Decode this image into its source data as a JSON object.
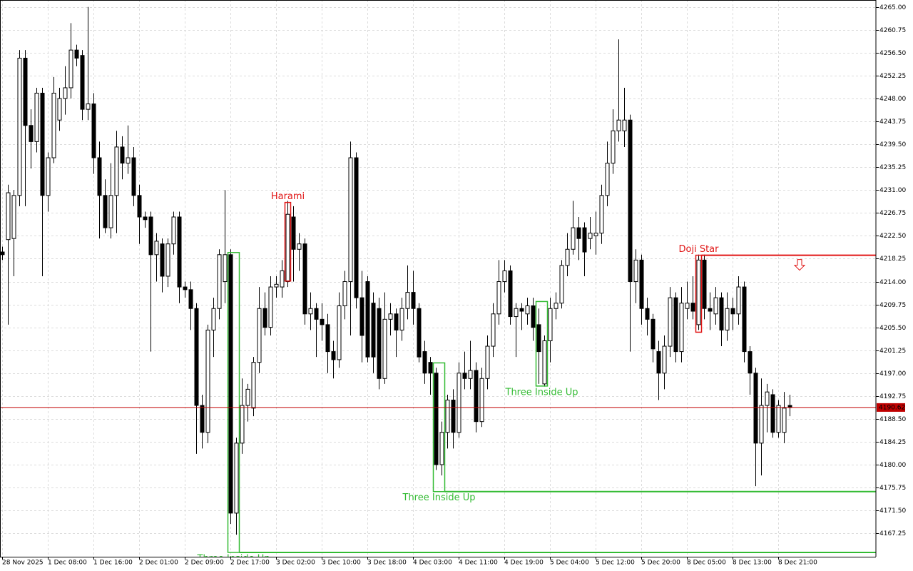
{
  "chart_data": {
    "type": "candlestick",
    "categories": [
      "28 Nov 2025",
      null,
      null,
      null,
      null,
      null,
      null,
      null,
      "1 Dec 08:00",
      null,
      null,
      null,
      null,
      null,
      null,
      null,
      "1 Dec 16:00",
      null,
      null,
      null,
      null,
      null,
      null,
      null,
      "2 Dec 01:00",
      null,
      null,
      null,
      null,
      null,
      null,
      null,
      "2 Dec 09:00",
      null,
      null,
      null,
      null,
      null,
      null,
      null,
      "2 Dec 17:00",
      null,
      null,
      null,
      null,
      null,
      null,
      null,
      "3 Dec 02:00",
      null,
      null,
      null,
      null,
      null,
      null,
      null,
      "3 Dec 10:00",
      null,
      null,
      null,
      null,
      null,
      null,
      null,
      "3 Dec 18:00",
      null,
      null,
      null,
      null,
      null,
      null,
      null,
      "4 Dec 03:00",
      null,
      null,
      null,
      null,
      null,
      null,
      null,
      "4 Dec 11:00",
      null,
      null,
      null,
      null,
      null,
      null,
      null,
      "4 Dec 19:00",
      null,
      null,
      null,
      null,
      null,
      null,
      null,
      "5 Dec 04:00",
      null,
      null,
      null,
      null,
      null,
      null,
      null,
      "5 Dec 12:00",
      null,
      null,
      null,
      null,
      null,
      null,
      null,
      "5 Dec 20:00",
      null,
      null,
      null,
      null,
      null,
      null,
      null,
      "8 Dec 05:00",
      null,
      null,
      null,
      null,
      null,
      null,
      null,
      "8 Dec 13:00",
      null,
      null,
      null,
      null,
      null,
      null,
      null,
      "8 Dec 21:00",
      null,
      null
    ],
    "ohlc": [
      [
        4219.5,
        4220.5,
        4218,
        4219
      ],
      [
        4221.8,
        4232,
        4206,
        4230.5
      ],
      [
        4222,
        4231,
        4215,
        4230
      ],
      [
        4230,
        4257,
        4228,
        4255.5
      ],
      [
        4255.5,
        4257,
        4228,
        4243
      ],
      [
        4243,
        4246,
        4235,
        4240
      ],
      [
        4240,
        4250,
        4238,
        4249
      ],
      [
        4249,
        4250,
        4215,
        4230
      ],
      [
        4230,
        4238,
        4227,
        4237
      ],
      [
        4237,
        4252,
        4236,
        4249
      ],
      [
        4244,
        4250,
        4242,
        4248
      ],
      [
        4248,
        4254,
        4245,
        4250
      ],
      [
        4250,
        4262,
        4248,
        4257
      ],
      [
        4257,
        4258,
        4254,
        4255.5
      ],
      [
        4256,
        4257,
        4244,
        4246
      ],
      [
        4246,
        4265,
        4244,
        4247
      ],
      [
        4247,
        4249,
        4234,
        4237
      ],
      [
        4237,
        4240,
        4222,
        4230
      ],
      [
        4230,
        4233,
        4223,
        4224
      ],
      [
        4224,
        4236,
        4222,
        4230
      ],
      [
        4230,
        4242,
        4223,
        4239
      ],
      [
        4239,
        4241,
        4233,
        4236
      ],
      [
        4236,
        4243,
        4234,
        4237
      ],
      [
        4237,
        4239,
        4228,
        4230
      ],
      [
        4230,
        4232,
        4221,
        4226
      ],
      [
        4226,
        4227,
        4224,
        4225.5
      ],
      [
        4226,
        4227,
        4201,
        4219
      ],
      [
        4219,
        4223,
        4214,
        4221.5
      ],
      [
        4221,
        4222,
        4212,
        4215
      ],
      [
        4215,
        4222,
        4213,
        4221
      ],
      [
        4221,
        4227,
        4219,
        4226
      ],
      [
        4226,
        4227,
        4210,
        4213
      ],
      [
        4213,
        4214,
        4211,
        4212.5
      ],
      [
        4212.5,
        4214,
        4205,
        4209
      ],
      [
        4209,
        4210,
        4182,
        4191
      ],
      [
        4191,
        4193,
        4183,
        4186
      ],
      [
        4186,
        4206,
        4184,
        4205
      ],
      [
        4205,
        4211,
        4200,
        4209
      ],
      [
        4209,
        4220,
        4207,
        4219
      ],
      [
        4214,
        4231,
        4210,
        4219
      ],
      [
        4219,
        4220,
        4169,
        4171
      ],
      [
        4171,
        4185,
        4167,
        4184
      ],
      [
        4184,
        4196,
        4182,
        4191
      ],
      [
        4191,
        4195,
        4188,
        4194
      ],
      [
        4190.5,
        4200,
        4189,
        4199
      ],
      [
        4199,
        4213,
        4197,
        4209
      ],
      [
        4209,
        4212,
        4204,
        4205.5
      ],
      [
        4205.5,
        4215,
        4204,
        4213
      ],
      [
        4213,
        4215,
        4211,
        4213.5
      ],
      [
        4213,
        4218,
        4211,
        4216
      ],
      [
        4214,
        4229,
        4213,
        4226.5
      ],
      [
        4226,
        4228,
        4214,
        4220
      ],
      [
        4220,
        4223,
        4216,
        4221
      ],
      [
        4221,
        4222,
        4206,
        4208
      ],
      [
        4208,
        4212,
        4205,
        4209
      ],
      [
        4209,
        4210,
        4200,
        4207
      ],
      [
        4207,
        4210,
        4203,
        4206
      ],
      [
        4206,
        4208,
        4197,
        4201
      ],
      [
        4201,
        4203,
        4196,
        4199.5
      ],
      [
        4199.5,
        4212,
        4198,
        4209.5
      ],
      [
        4209.5,
        4216,
        4207,
        4214
      ],
      [
        4214,
        4240,
        4204,
        4237
      ],
      [
        4237,
        4238,
        4209,
        4211
      ],
      [
        4211,
        4216,
        4199,
        4204
      ],
      [
        4214,
        4215,
        4199,
        4200
      ],
      [
        4210,
        4212,
        4197,
        4200
      ],
      [
        4209,
        4211,
        4194,
        4196
      ],
      [
        4196,
        4212,
        4195,
        4207
      ],
      [
        4207,
        4210,
        4204,
        4208
      ],
      [
        4208,
        4209,
        4200,
        4205
      ],
      [
        4205,
        4211,
        4203,
        4209
      ],
      [
        4209,
        4217,
        4207,
        4212
      ],
      [
        4212,
        4216,
        4206,
        4209
      ],
      [
        4209,
        4210,
        4199,
        4200
      ],
      [
        4201,
        4203,
        4195,
        4197
      ],
      [
        4199,
        4200,
        4193,
        4197
      ],
      [
        4197,
        4198,
        4179,
        4180
      ],
      [
        4180,
        4188,
        4178,
        4186
      ],
      [
        4186,
        4193,
        4183,
        4192
      ],
      [
        4192,
        4194,
        4183,
        4186
      ],
      [
        4186,
        4199,
        4185,
        4197
      ],
      [
        4197,
        4201,
        4194,
        4196
      ],
      [
        4196,
        4203,
        4194,
        4197.5
      ],
      [
        4197.5,
        4199,
        4186,
        4188
      ],
      [
        4188,
        4198,
        4187,
        4196
      ],
      [
        4196,
        4204,
        4194,
        4202
      ],
      [
        4202,
        4210,
        4200,
        4208
      ],
      [
        4208,
        4218,
        4206,
        4214
      ],
      [
        4214,
        4218,
        4212,
        4216
      ],
      [
        4216,
        4217,
        4206,
        4207.5
      ],
      [
        4207.5,
        4210,
        4200,
        4209
      ],
      [
        4209,
        4210,
        4205,
        4208.5
      ],
      [
        4208,
        4211,
        4206,
        4209.5
      ],
      [
        4209.5,
        4211,
        4203,
        4205.5
      ],
      [
        4206,
        4209,
        4195,
        4201
      ],
      [
        4195,
        4204,
        4194.5,
        4203
      ],
      [
        4203,
        4211,
        4199,
        4209
      ],
      [
        4209,
        4212,
        4207,
        4210
      ],
      [
        4210,
        4218,
        4209,
        4217
      ],
      [
        4217,
        4223,
        4215,
        4220
      ],
      [
        4220,
        4229,
        4219,
        4224
      ],
      [
        4224,
        4226,
        4218,
        4222
      ],
      [
        4224,
        4225,
        4215,
        4219.5
      ],
      [
        4222,
        4226,
        4220,
        4223
      ],
      [
        4222.5,
        4227,
        4219,
        4223
      ],
      [
        4223,
        4232,
        4221,
        4230
      ],
      [
        4230,
        4240,
        4228,
        4236
      ],
      [
        4236,
        4246,
        4234,
        4242
      ],
      [
        4242,
        4259,
        4240,
        4244
      ],
      [
        4242,
        4250,
        4239,
        4244
      ],
      [
        4244,
        4245,
        4201,
        4214
      ],
      [
        4214,
        4220,
        4210,
        4218
      ],
      [
        4218,
        4219,
        4206,
        4209
      ],
      [
        4209,
        4211,
        4204,
        4207
      ],
      [
        4207,
        4208,
        4199,
        4201.5
      ],
      [
        4201,
        4203,
        4192,
        4197
      ],
      [
        4197,
        4204,
        4194,
        4202
      ],
      [
        4202,
        4213,
        4200,
        4211
      ],
      [
        4211,
        4212,
        4199,
        4201
      ],
      [
        4201,
        4213,
        4199,
        4210
      ],
      [
        4209,
        4214,
        4207,
        4210
      ],
      [
        4210,
        4215,
        4207,
        4208.5
      ],
      [
        4206,
        4219,
        4205,
        4218
      ],
      [
        4218,
        4219,
        4207,
        4209
      ],
      [
        4209,
        4212,
        4205,
        4208.5
      ],
      [
        4208,
        4213,
        4206,
        4211
      ],
      [
        4211,
        4212,
        4202,
        4205
      ],
      [
        4205,
        4212,
        4203,
        4209
      ],
      [
        4209,
        4211,
        4205,
        4208
      ],
      [
        4208,
        4215,
        4206,
        4213
      ],
      [
        4213,
        4214,
        4199,
        4201
      ],
      [
        4201,
        4202,
        4193,
        4197
      ],
      [
        4197,
        4198,
        4176,
        4184
      ],
      [
        4184,
        4196,
        4178,
        4191
      ],
      [
        4191,
        4195,
        4186,
        4193.5
      ],
      [
        4193,
        4194,
        4185,
        4186
      ],
      [
        4186,
        4192,
        4185,
        4191
      ],
      [
        4186,
        4193.5,
        4184,
        4190.5
      ],
      [
        4191,
        4193,
        4189,
        4190.62
      ]
    ],
    "ylim": [
      4162.9,
      4266.3
    ],
    "yticks": [
      {
        "value": 4265,
        "label": "4265.00"
      },
      {
        "value": 4260.75,
        "label": "4260.75"
      },
      {
        "value": 4256.5,
        "label": "4256.50"
      },
      {
        "value": 4252.25,
        "label": "4252.25"
      },
      {
        "value": 4248,
        "label": "4248.00"
      },
      {
        "value": 4243.75,
        "label": "4243.75"
      },
      {
        "value": 4239.5,
        "label": "4239.50"
      },
      {
        "value": 4235.25,
        "label": "4235.25"
      },
      {
        "value": 4231,
        "label": "4231.00"
      },
      {
        "value": 4226.75,
        "label": "4226.75"
      },
      {
        "value": 4222.5,
        "label": "4222.50"
      },
      {
        "value": 4218.25,
        "label": "4218.25"
      },
      {
        "value": 4214,
        "label": "4214.00"
      },
      {
        "value": 4209.75,
        "label": "4209.75"
      },
      {
        "value": 4205.5,
        "label": "4205.50"
      },
      {
        "value": 4201.25,
        "label": "4201.25"
      },
      {
        "value": 4197,
        "label": "4197.00"
      },
      {
        "value": 4192.75,
        "label": "4192.75"
      },
      {
        "value": 4188.5,
        "label": "4188.50"
      },
      {
        "value": 4184.25,
        "label": "4184.25"
      },
      {
        "value": 4180,
        "label": "4180.00"
      },
      {
        "value": 4175.75,
        "label": "4175.75"
      },
      {
        "value": 4171.5,
        "label": "4171.50"
      },
      {
        "value": 4167.25,
        "label": "4167.25"
      }
    ],
    "grid": true,
    "bull_color": "#ffffff",
    "bear_color": "#000000",
    "current_price": 4190.62,
    "current_price_color": "#c00000",
    "patterns": [
      {
        "name": "Three Inside Up",
        "color": "#33bb33",
        "start": 40,
        "end": 41,
        "high": 4219.4,
        "low": 4163.7,
        "extend": "low",
        "label_side": "below"
      },
      {
        "name": "Harami",
        "color": "#e01515",
        "start": 50,
        "end": 50,
        "high": 4228.7,
        "low": 4214.1,
        "extend": null,
        "label_side": "above"
      },
      {
        "name": "Three Inside Up",
        "color": "#33bb33",
        "start": 76,
        "end": 77,
        "high": 4198.9,
        "low": 4175.0,
        "extend": "low",
        "label_side": "below"
      },
      {
        "name": "Three Inside Up",
        "color": "#33bb33",
        "start": 94,
        "end": 95,
        "high": 4210.3,
        "low": 4194.6,
        "extend": null,
        "label_side": "below"
      },
      {
        "name": "Doji Star",
        "color": "#e01515",
        "start": 122,
        "end": 122,
        "high": 4218.9,
        "low": 4204.6,
        "extend": "high",
        "label_side": "above"
      }
    ]
  }
}
